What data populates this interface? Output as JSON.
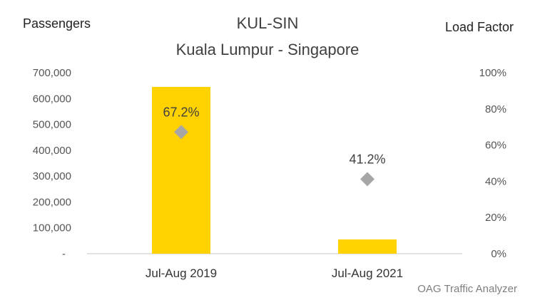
{
  "chart_data": {
    "type": "bar+scatter",
    "title": "KUL-SIN",
    "subtitle": "Kuala Lumpur - Singapore",
    "ylabel_left": "Passengers",
    "ylabel_right": "Load Factor",
    "categories": [
      "Jul-Aug 2019",
      "Jul-Aug 2021"
    ],
    "y_left_ticks": [
      "-",
      "100,000",
      "200,000",
      "300,000",
      "400,000",
      "500,000",
      "600,000",
      "700,000"
    ],
    "y_right_ticks": [
      "0%",
      "20%",
      "40%",
      "60%",
      "80%",
      "100%"
    ],
    "ylim_left": [
      0,
      700000
    ],
    "ylim_right": [
      0,
      100
    ],
    "series": [
      {
        "values": [
          645000,
          55000
        ],
        "color": "#FFD200",
        "kind": "bar"
      },
      {
        "values": [
          67.2,
          41.2
        ],
        "labels": [
          "67.2%",
          "41.2%"
        ],
        "color": "#A6A6A6",
        "kind": "diamond"
      }
    ],
    "grid": false,
    "source": "OAG Traffic Analyzer"
  }
}
